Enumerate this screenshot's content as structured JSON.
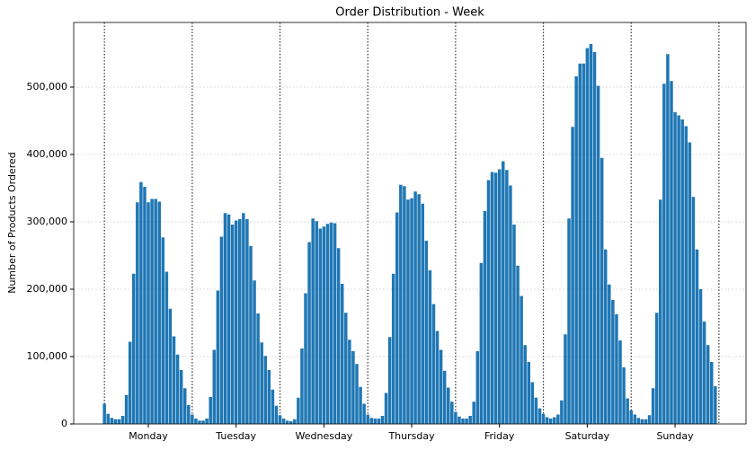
{
  "chart_data": {
    "type": "bar",
    "title": "Order Distribution - Week",
    "ylabel": "Number of Products Ordered",
    "color": "#1f77b4",
    "groups": [
      {
        "name": "Monday",
        "values": [
          30000,
          15000,
          9000,
          7000,
          7000,
          12000,
          43000,
          122000,
          223000,
          329000,
          359000,
          352000,
          329000,
          334000,
          334000,
          330000,
          277000,
          226000,
          171000,
          130000,
          103000,
          80000,
          53000,
          28000
        ]
      },
      {
        "name": "Tuesday",
        "values": [
          14000,
          8000,
          5000,
          5000,
          8000,
          40000,
          110000,
          198000,
          278000,
          313000,
          311000,
          296000,
          302000,
          304000,
          313000,
          304000,
          264000,
          213000,
          164000,
          121000,
          101000,
          80000,
          51000,
          27000
        ]
      },
      {
        "name": "Wednesday",
        "values": [
          13000,
          8000,
          5000,
          4000,
          7000,
          39000,
          112000,
          194000,
          270000,
          305000,
          301000,
          290000,
          293000,
          297000,
          299000,
          298000,
          261000,
          208000,
          165000,
          125000,
          108000,
          89000,
          55000,
          30000
        ]
      },
      {
        "name": "Thursday",
        "values": [
          14000,
          9000,
          8000,
          8000,
          12000,
          46000,
          129000,
          223000,
          314000,
          355000,
          353000,
          333000,
          335000,
          345000,
          341000,
          327000,
          272000,
          228000,
          178000,
          138000,
          110000,
          79000,
          54000,
          33000
        ]
      },
      {
        "name": "Friday",
        "values": [
          18000,
          11000,
          8000,
          8000,
          12000,
          33000,
          108000,
          239000,
          316000,
          362000,
          374000,
          373000,
          378000,
          390000,
          377000,
          354000,
          296000,
          235000,
          190000,
          117000,
          92000,
          62000,
          39000,
          23000
        ]
      },
      {
        "name": "Saturday",
        "values": [
          15000,
          10000,
          8000,
          10000,
          14000,
          35000,
          133000,
          305000,
          441000,
          516000,
          535000,
          535000,
          558000,
          564000,
          552000,
          502000,
          395000,
          259000,
          207000,
          184000,
          163000,
          124000,
          84000,
          38000
        ]
      },
      {
        "name": "Sunday",
        "values": [
          20000,
          14000,
          9000,
          7000,
          7000,
          13000,
          53000,
          165000,
          333000,
          505000,
          549000,
          509000,
          463000,
          458000,
          452000,
          442000,
          418000,
          337000,
          259000,
          200000,
          152000,
          117000,
          92000,
          56000
        ]
      }
    ],
    "ylim": [
      0,
      596000
    ],
    "yticks": [
      0,
      {
        "value": 100000,
        "label": "100,000"
      },
      {
        "value": 200000,
        "label": "200,000"
      },
      {
        "value": 300000,
        "label": "300,000"
      },
      {
        "value": 400000,
        "label": "400,000"
      },
      {
        "value": 500000,
        "label": "500,000"
      }
    ],
    "grid": true
  }
}
